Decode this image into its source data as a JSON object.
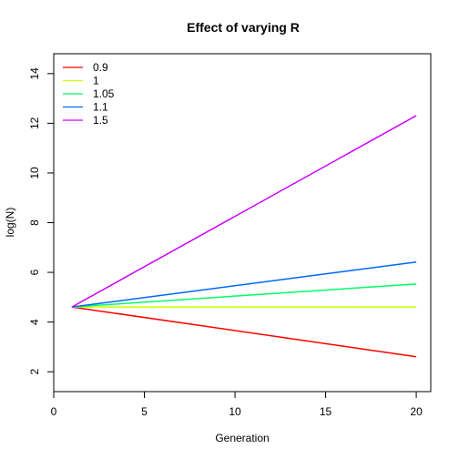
{
  "chart_data": {
    "type": "line",
    "title": "Effect of varying R",
    "xlabel": "Generation",
    "ylabel": "log(N)",
    "xlim": [
      0,
      20.8
    ],
    "ylim": [
      1.2,
      14.8
    ],
    "xticks": [
      0,
      5,
      10,
      15,
      20
    ],
    "yticks": [
      2,
      4,
      6,
      8,
      10,
      12,
      14
    ],
    "x": [
      1,
      20
    ],
    "series": [
      {
        "name": "0.9",
        "color": "#FF0000",
        "values": [
          4.605,
          2.603
        ]
      },
      {
        "name": "1",
        "color": "#CCFF00",
        "values": [
          4.605,
          4.605
        ]
      },
      {
        "name": "1.05",
        "color": "#00FF66",
        "values": [
          4.605,
          5.532
        ]
      },
      {
        "name": "1.1",
        "color": "#0066FF",
        "values": [
          4.605,
          6.416
        ]
      },
      {
        "name": "1.5",
        "color": "#CC00FF",
        "values": [
          4.605,
          12.309
        ]
      }
    ],
    "legend": "top-left",
    "grid": false
  }
}
